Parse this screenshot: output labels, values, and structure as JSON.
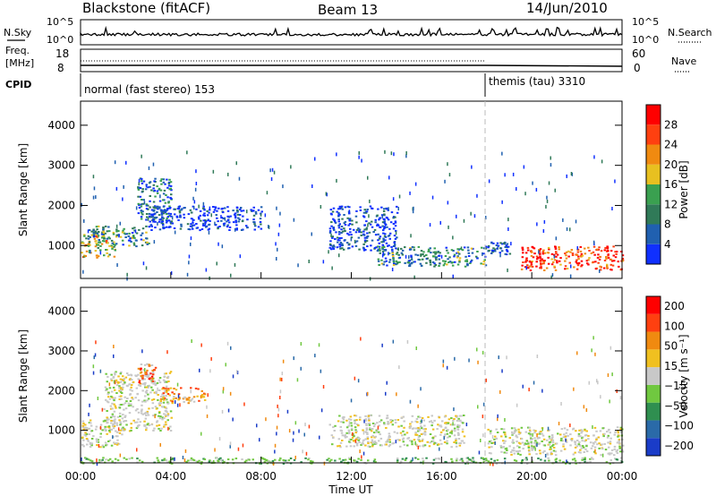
{
  "header": {
    "station": "Blackstone (fitACF)",
    "beam": "Beam 13",
    "date": "14/Jun/2010"
  },
  "top_panels": {
    "nsky_label": "N.Sky",
    "nsky_ticks": [
      "10^5",
      "10^0"
    ],
    "nsearch_label": "N.Search",
    "nsearch_ticks": [
      "10^5",
      "10^0"
    ],
    "freq_label_line1": "Freq.",
    "freq_label_line2": "[MHz]",
    "freq_ticks": [
      "18",
      "8"
    ],
    "nave_label": "Nave",
    "nave_ticks": [
      "60",
      "0"
    ],
    "cpid_label": "CPID",
    "cpid_segments": [
      {
        "text": "normal (fast stereo) 153",
        "start_hour": 0,
        "end_hour": 18
      },
      {
        "text": "themis (tau) 3310",
        "start_hour": 18,
        "end_hour": 24
      }
    ]
  },
  "x_axis": {
    "label": "Time UT",
    "ticks": [
      "00:00",
      "04:00",
      "08:00",
      "12:00",
      "16:00",
      "20:00",
      "00:00"
    ]
  },
  "chart_data": [
    {
      "type": "heatmap",
      "panel": "power",
      "ylabel": "Slant Range [km]",
      "yticks": [
        1000,
        2000,
        3000,
        4000
      ],
      "ylim": [
        180,
        4600
      ],
      "xlim_hours": [
        0,
        24
      ],
      "colorbar_label": "Power [dB]",
      "colorbar_ticks": [
        "4",
        "8",
        "12",
        "16",
        "20",
        "24",
        "28"
      ],
      "colorbar_colors": [
        "#1030ff",
        "#2060b0",
        "#307a58",
        "#3aa050",
        "#e8c020",
        "#f08a10",
        "#ff4010",
        "#ff0000"
      ],
      "regions": [
        {
          "t0": 0,
          "t1": 1.5,
          "r0": 700,
          "r1": 1300,
          "level": 0.55
        },
        {
          "t0": 0.3,
          "t1": 3.0,
          "r0": 1000,
          "r1": 1500,
          "level": 0.35
        },
        {
          "t0": 2.5,
          "t1": 4.0,
          "r0": 1600,
          "r1": 2700,
          "level": 0.25
        },
        {
          "t0": 3.0,
          "t1": 8.0,
          "r0": 1400,
          "r1": 2000,
          "level": 0.05
        },
        {
          "t0": 11.0,
          "t1": 14.0,
          "r0": 900,
          "r1": 2000,
          "level": 0.1
        },
        {
          "t0": 13.0,
          "t1": 18.0,
          "r0": 500,
          "r1": 1000,
          "level": 0.3
        },
        {
          "t0": 18.0,
          "t1": 19.0,
          "r0": 800,
          "r1": 1100,
          "level": 0.1
        },
        {
          "t0": 19.5,
          "t1": 24.0,
          "r0": 400,
          "r1": 1000,
          "level": 0.85
        }
      ]
    },
    {
      "type": "heatmap",
      "panel": "velocity",
      "ylabel": "Slant Range [km]",
      "yticks": [
        1000,
        2000,
        3000,
        4000
      ],
      "ylim": [
        180,
        4600
      ],
      "xlim_hours": [
        0,
        24
      ],
      "colorbar_label": "Velocity [m s⁻¹]",
      "colorbar_ticks": [
        "200",
        "100",
        "50",
        "15",
        "−15",
        "−50",
        "−100",
        "−200"
      ],
      "colorbar_colors": [
        "#1a3cc8",
        "#2a6aa8",
        "#2f8f50",
        "#70c840",
        "#c8c8c8",
        "#f0c020",
        "#f08a10",
        "#ff4010",
        "#ff0000"
      ],
      "regions": [
        {
          "t0": 0,
          "t1": 1.8,
          "r0": 600,
          "r1": 1300,
          "level": "ground"
        },
        {
          "t0": 1.0,
          "t1": 4.0,
          "r0": 1000,
          "r1": 2500,
          "level": "ground"
        },
        {
          "t0": 2.5,
          "t1": 3.3,
          "r0": 2200,
          "r1": 2700,
          "level": "red"
        },
        {
          "t0": 3.5,
          "t1": 5.5,
          "r0": 1700,
          "r1": 2100,
          "level": "orange"
        },
        {
          "t0": 11.0,
          "t1": 17.0,
          "r0": 600,
          "r1": 1400,
          "level": "ground"
        },
        {
          "t0": 18.0,
          "t1": 24.0,
          "r0": 400,
          "r1": 1100,
          "level": "ground"
        },
        {
          "t0": 0.0,
          "t1": 24.0,
          "r0": 180,
          "r1": 330,
          "level": "green"
        }
      ]
    }
  ]
}
